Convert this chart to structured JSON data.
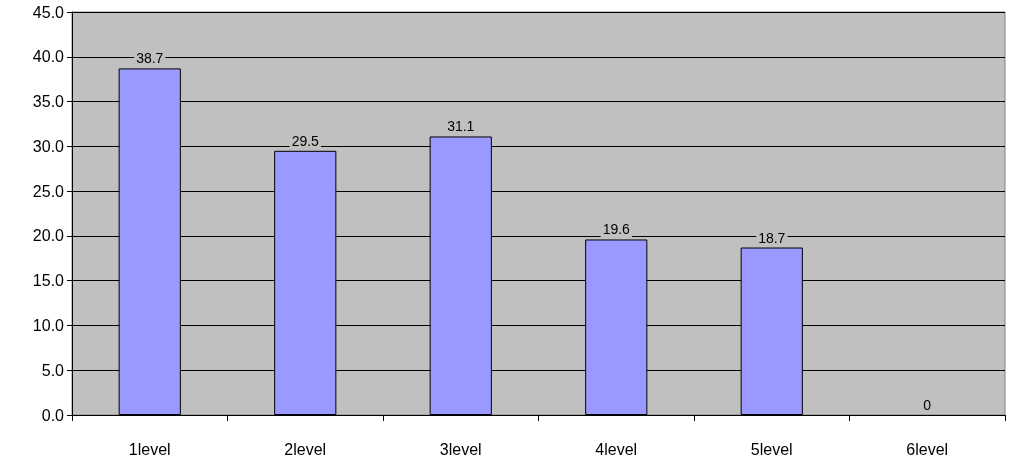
{
  "chart_data": {
    "type": "bar",
    "categories": [
      "1level",
      "2level",
      "3level",
      "4level",
      "5level",
      "6level"
    ],
    "values": [
      38.7,
      29.5,
      31.1,
      19.6,
      18.7,
      0
    ],
    "color": "#9999ff",
    "ylim": [
      0,
      45
    ],
    "yticks": [
      {
        "value": 0,
        "label": "0.0"
      },
      {
        "value": 5,
        "label": "5.0"
      },
      {
        "value": 10,
        "label": "10.0"
      },
      {
        "value": 15,
        "label": "15.0"
      },
      {
        "value": 20,
        "label": "20.0"
      },
      {
        "value": 25,
        "label": "25.0"
      },
      {
        "value": 30,
        "label": "30.0"
      },
      {
        "value": 35,
        "label": "35.0"
      },
      {
        "value": 40,
        "label": "40.0"
      },
      {
        "value": 45,
        "label": "45.0"
      }
    ],
    "grid": "y",
    "data_labels": true
  }
}
